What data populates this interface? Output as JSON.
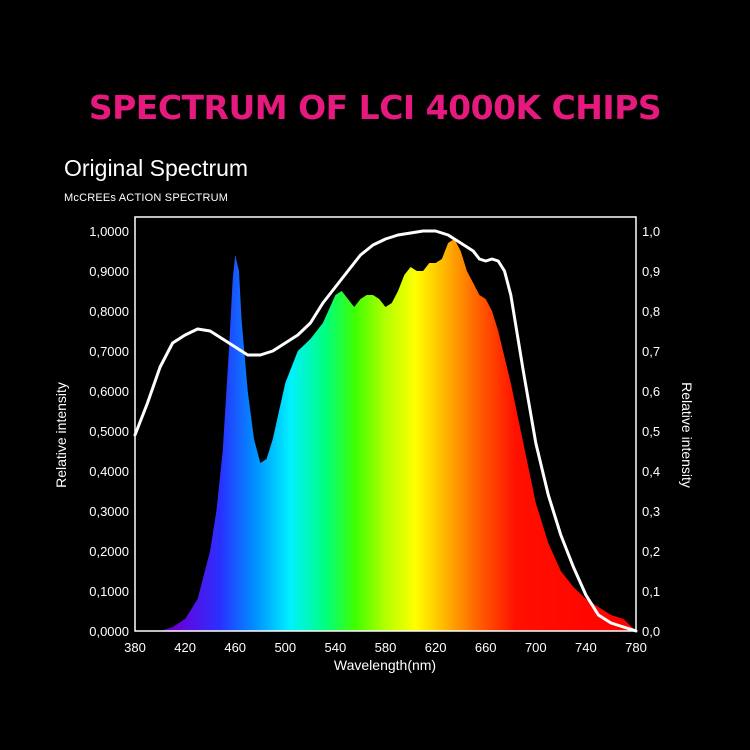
{
  "headline": "SPECTRUM OF LCI 4000K CHIPS",
  "colors": {
    "headline": "#e6197f",
    "background": "#000000",
    "frame": "#ffffff",
    "curve": "#ffffff"
  },
  "chart_data": {
    "type": "area",
    "title": "Original Spectrum",
    "legend_note": "McCREEs ACTION SPECTRUM",
    "xlabel": "Wavelength(nm)",
    "ylabel_left": "Relative intensity",
    "ylabel_right": "Relative intensity",
    "xlim": [
      380,
      780
    ],
    "ylim": [
      0,
      1
    ],
    "x_ticks": [
      "380",
      "420",
      "460",
      "500",
      "540",
      "580",
      "620",
      "660",
      "700",
      "740",
      "780"
    ],
    "y_ticks_left": [
      "0,0000",
      "0,1000",
      "0,2000",
      "0,3000",
      "0,4000",
      "0,5000",
      "0,6000",
      "0,7000",
      "0,8000",
      "0,9000",
      "1,0000"
    ],
    "y_ticks_right": [
      "0,0",
      "0,1",
      "0,2",
      "0,3",
      "0,4",
      "0,5",
      "0,6",
      "0,7",
      "0,8",
      "0,9",
      "1,0"
    ],
    "grid": false,
    "series": [
      {
        "name": "Original Spectrum",
        "fill": "rainbow",
        "x": [
          400,
          410,
          420,
          430,
          440,
          445,
          450,
          455,
          458,
          460,
          463,
          465,
          470,
          475,
          480,
          485,
          490,
          495,
          500,
          510,
          520,
          530,
          540,
          545,
          550,
          555,
          560,
          565,
          570,
          575,
          580,
          585,
          590,
          595,
          600,
          605,
          610,
          615,
          620,
          625,
          630,
          635,
          640,
          645,
          650,
          655,
          660,
          665,
          670,
          680,
          690,
          700,
          710,
          720,
          730,
          740,
          750,
          760,
          770,
          780
        ],
        "y": [
          0.0,
          0.01,
          0.03,
          0.08,
          0.2,
          0.3,
          0.45,
          0.7,
          0.88,
          0.94,
          0.9,
          0.78,
          0.6,
          0.48,
          0.42,
          0.43,
          0.48,
          0.55,
          0.62,
          0.7,
          0.73,
          0.77,
          0.84,
          0.85,
          0.83,
          0.81,
          0.83,
          0.84,
          0.84,
          0.83,
          0.81,
          0.82,
          0.85,
          0.89,
          0.91,
          0.9,
          0.9,
          0.92,
          0.92,
          0.93,
          0.97,
          0.98,
          0.95,
          0.9,
          0.87,
          0.84,
          0.83,
          0.8,
          0.75,
          0.62,
          0.47,
          0.32,
          0.22,
          0.15,
          0.11,
          0.08,
          0.06,
          0.04,
          0.03,
          0.0
        ]
      },
      {
        "name": "McCREEs ACTION SPECTRUM",
        "x": [
          380,
          390,
          400,
          410,
          420,
          430,
          440,
          450,
          460,
          470,
          480,
          490,
          500,
          510,
          520,
          530,
          540,
          550,
          560,
          570,
          580,
          590,
          600,
          610,
          620,
          630,
          640,
          650,
          655,
          660,
          665,
          670,
          675,
          680,
          690,
          700,
          710,
          720,
          730,
          740,
          750,
          760,
          770,
          780
        ],
        "y": [
          0.49,
          0.57,
          0.66,
          0.72,
          0.74,
          0.755,
          0.75,
          0.73,
          0.71,
          0.69,
          0.69,
          0.7,
          0.72,
          0.74,
          0.77,
          0.82,
          0.86,
          0.9,
          0.94,
          0.965,
          0.98,
          0.99,
          0.995,
          1.0,
          1.0,
          0.99,
          0.97,
          0.95,
          0.93,
          0.925,
          0.93,
          0.925,
          0.9,
          0.84,
          0.65,
          0.47,
          0.34,
          0.24,
          0.16,
          0.09,
          0.04,
          0.02,
          0.01,
          0.0
        ]
      }
    ]
  }
}
